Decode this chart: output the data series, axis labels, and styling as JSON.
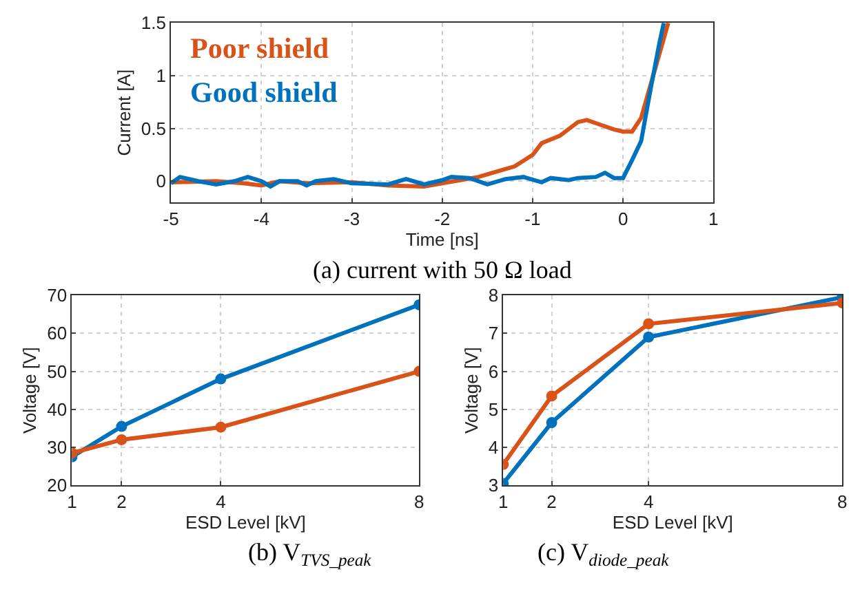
{
  "chart_data": [
    {
      "type": "line",
      "title": "(a) current with 50 Ω load",
      "xlabel": "Time [ns]",
      "ylabel": "Current [A]",
      "xlim": [
        -5,
        1
      ],
      "ylim": [
        -0.2,
        1.5
      ],
      "xticks": [
        -5,
        -4,
        -3,
        -2,
        -1,
        0,
        1
      ],
      "yticks": [
        0,
        0.5,
        1,
        1.5
      ],
      "grid": true,
      "legend": "top left",
      "marker": "none",
      "line_style": "solid",
      "series": [
        {
          "name": "Poor shield",
          "color": "#d95319",
          "x": [
            -5,
            -4.5,
            -4.2,
            -4,
            -3.8,
            -3.5,
            -3,
            -2.6,
            -2.2,
            -2,
            -1.8,
            -1.6,
            -1.4,
            -1.2,
            -1.0,
            -0.9,
            -0.7,
            -0.5,
            -0.4,
            -0.3,
            -0.1,
            0,
            0.1,
            0.2,
            0.3,
            0.4,
            0.5
          ],
          "values": [
            -0.01,
            0.0,
            -0.02,
            -0.04,
            0.0,
            -0.02,
            -0.01,
            -0.04,
            -0.05,
            -0.02,
            0.01,
            0.04,
            0.09,
            0.14,
            0.25,
            0.36,
            0.43,
            0.56,
            0.58,
            0.55,
            0.49,
            0.47,
            0.47,
            0.6,
            0.9,
            1.2,
            1.5
          ]
        },
        {
          "name": "Good shield",
          "color": "#0072bd",
          "x": [
            -5,
            -4.9,
            -4.7,
            -4.5,
            -4.3,
            -4.15,
            -4,
            -3.9,
            -3.8,
            -3.6,
            -3.5,
            -3.4,
            -3.2,
            -3.0,
            -2.6,
            -2.4,
            -2.2,
            -2.0,
            -1.9,
            -1.7,
            -1.5,
            -1.3,
            -1.1,
            -0.9,
            -0.8,
            -0.6,
            -0.5,
            -0.3,
            -0.2,
            -0.1,
            0,
            0.1,
            0.2,
            0.3,
            0.4,
            0.45
          ],
          "values": [
            -0.02,
            0.04,
            0.0,
            -0.03,
            0.0,
            0.04,
            0.0,
            -0.05,
            0.0,
            0.0,
            -0.04,
            0.0,
            0.02,
            -0.02,
            -0.03,
            0.02,
            -0.03,
            0.01,
            0.04,
            0.03,
            -0.03,
            0.02,
            0.04,
            -0.01,
            0.03,
            0.01,
            0.03,
            0.04,
            0.08,
            0.03,
            0.03,
            0.2,
            0.38,
            0.85,
            1.3,
            1.5
          ]
        }
      ]
    },
    {
      "type": "line",
      "title": "(b) V$_{TVS_peak}$",
      "xlabel": "ESD Level [kV]",
      "ylabel": "Voltage [V]",
      "x": [
        1,
        2,
        4,
        8
      ],
      "xlim": [
        1,
        8
      ],
      "ylim": [
        20,
        70
      ],
      "xticks": [
        1,
        2,
        4,
        8
      ],
      "yticks": [
        20,
        30,
        40,
        50,
        60,
        70
      ],
      "grid": true,
      "marker": "circle",
      "line_style": "solid",
      "series": [
        {
          "color": "#0072bd",
          "values": [
            27.5,
            35.5,
            48,
            67.5
          ]
        },
        {
          "color": "#d95319",
          "values": [
            28.5,
            32,
            35.3,
            50
          ]
        }
      ]
    },
    {
      "type": "line",
      "title": "(c) V$_{diode_peak}$",
      "xlabel": "ESD Level [kV]",
      "ylabel": "Voltage [V]",
      "x": [
        1,
        2,
        4,
        8
      ],
      "xlim": [
        1,
        8
      ],
      "ylim": [
        3,
        8
      ],
      "xticks": [
        1,
        2,
        4,
        8
      ],
      "yticks": [
        3,
        4,
        5,
        6,
        7,
        8
      ],
      "grid": true,
      "marker": "circle",
      "line_style": "solid",
      "series": [
        {
          "color": "#0072bd",
          "values": [
            3.05,
            4.65,
            6.9,
            7.95
          ]
        },
        {
          "color": "#d95319",
          "values": [
            3.55,
            5.35,
            7.25,
            7.8
          ]
        }
      ]
    }
  ]
}
